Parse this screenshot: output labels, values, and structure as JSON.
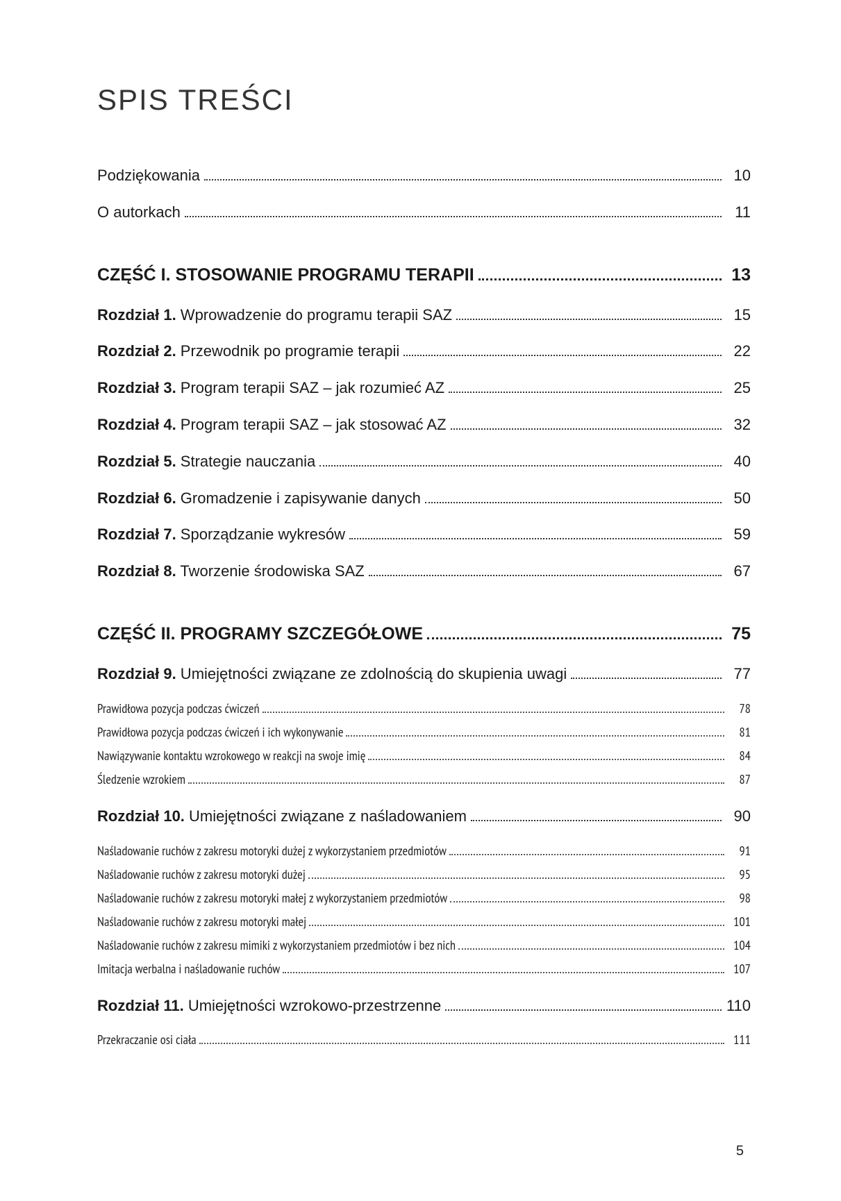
{
  "title": "SPIS TREŚCI",
  "page_number": "5",
  "front": [
    {
      "text": "Podziękowania",
      "page": "10"
    },
    {
      "text": "O autorkach",
      "page": "11"
    }
  ],
  "parts": [
    {
      "heading": "CZĘŚĆ I. STOSOWANIE PROGRAMU TERAPII",
      "page": "13",
      "chapters": [
        {
          "bold": "Rozdział 1.",
          "text": " Wprowadzenie do programu terapii SAZ",
          "page": "15",
          "subs": []
        },
        {
          "bold": "Rozdział 2.",
          "text": " Przewodnik po programie terapii",
          "page": "22",
          "subs": []
        },
        {
          "bold": "Rozdział 3.",
          "text": " Program terapii SAZ – jak rozumieć AZ",
          "page": "25",
          "subs": []
        },
        {
          "bold": "Rozdział 4.",
          "text": " Program terapii SAZ – jak stosować AZ",
          "page": "32",
          "subs": []
        },
        {
          "bold": "Rozdział 5.",
          "text": " Strategie nauczania",
          "page": "40",
          "subs": []
        },
        {
          "bold": "Rozdział 6.",
          "text": " Gromadzenie i zapisywanie danych",
          "page": "50",
          "subs": []
        },
        {
          "bold": "Rozdział 7.",
          "text": " Sporządzanie wykresów",
          "page": "59",
          "subs": []
        },
        {
          "bold": "Rozdział 8.",
          "text": " Tworzenie środowiska SAZ",
          "page": "67",
          "subs": []
        }
      ]
    },
    {
      "heading": "CZĘŚĆ II. PROGRAMY SZCZEGÓŁOWE",
      "page": "75",
      "chapters": [
        {
          "bold": "Rozdział 9.",
          "text": " Umiejętności związane ze zdolnością do skupienia uwagi",
          "page": "77",
          "subs": [
            {
              "text": "Prawidłowa pozycja podczas ćwiczeń",
              "page": "78"
            },
            {
              "text": "Prawidłowa pozycja podczas ćwiczeń i ich wykonywanie",
              "page": "81"
            },
            {
              "text": "Nawiązywanie kontaktu wzrokowego w reakcji na swoje imię",
              "page": "84"
            },
            {
              "text": "Śledzenie wzrokiem",
              "page": "87"
            }
          ]
        },
        {
          "bold": "Rozdział 10.",
          "text": " Umiejętności związane z naśladowaniem",
          "page": "90",
          "subs": [
            {
              "text": "Naśladowanie ruchów z zakresu motoryki dużej z wykorzystaniem przedmiotów",
              "page": "91"
            },
            {
              "text": "Naśladowanie ruchów z zakresu motoryki dużej",
              "page": "95"
            },
            {
              "text": "Naśladowanie ruchów z zakresu motoryki małej z wykorzystaniem przedmiotów",
              "page": "98"
            },
            {
              "text": "Naśladowanie ruchów z zakresu motoryki małej",
              "page": "101"
            },
            {
              "text": "Naśladowanie ruchów z zakresu mimiki z wykorzystaniem przedmiotów i bez nich",
              "page": "104"
            },
            {
              "text": "Imitacja werbalna i naśladowanie ruchów",
              "page": "107"
            }
          ]
        },
        {
          "bold": "Rozdział 11.",
          "text": " Umiejętności wzrokowo-przestrzenne",
          "page": "110",
          "subs": [
            {
              "text": "Przekraczanie osi ciała",
              "page": "111"
            }
          ]
        }
      ]
    }
  ]
}
